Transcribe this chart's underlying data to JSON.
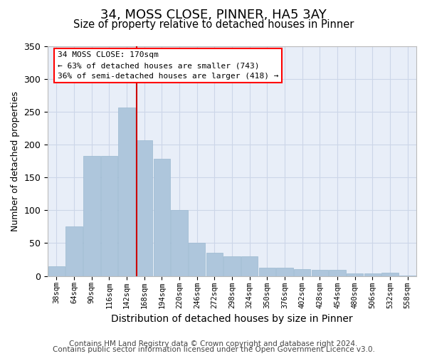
{
  "title1": "34, MOSS CLOSE, PINNER, HA5 3AY",
  "title2": "Size of property relative to detached houses in Pinner",
  "xlabel": "Distribution of detached houses by size in Pinner",
  "ylabel": "Number of detached properties",
  "bar_labels": [
    "38sqm",
    "64sqm",
    "90sqm",
    "116sqm",
    "142sqm",
    "168sqm",
    "194sqm",
    "220sqm",
    "246sqm",
    "272sqm",
    "298sqm",
    "324sqm",
    "350sqm",
    "376sqm",
    "402sqm",
    "428sqm",
    "454sqm",
    "480sqm",
    "506sqm",
    "532sqm",
    "558sqm"
  ],
  "bar_heights": [
    15,
    75,
    183,
    183,
    257,
    207,
    178,
    100,
    50,
    35,
    30,
    30,
    13,
    13,
    10,
    9,
    9,
    4,
    4,
    5,
    1
  ],
  "bar_color": "#aec6dc",
  "bar_edge_color": "#9ab8d0",
  "grid_color": "#ccd6e8",
  "bg_color": "#e8eef8",
  "annotation_line1": "34 MOSS CLOSE: 170sqm",
  "annotation_line2": "← 63% of detached houses are smaller (743)",
  "annotation_line3": "36% of semi-detached houses are larger (418) →",
  "vline_color": "#cc0000",
  "vline_x": 4.577,
  "ylim_max": 350,
  "yticks": [
    0,
    50,
    100,
    150,
    200,
    250,
    300,
    350
  ],
  "title1_fontsize": 13,
  "title2_fontsize": 10.5,
  "xlabel_fontsize": 10,
  "ylabel_fontsize": 9,
  "tick_fontsize": 7.5,
  "footer1": "Contains HM Land Registry data © Crown copyright and database right 2024.",
  "footer2": "Contains public sector information licensed under the Open Government Licence v3.0.",
  "footer_fontsize": 7.5
}
